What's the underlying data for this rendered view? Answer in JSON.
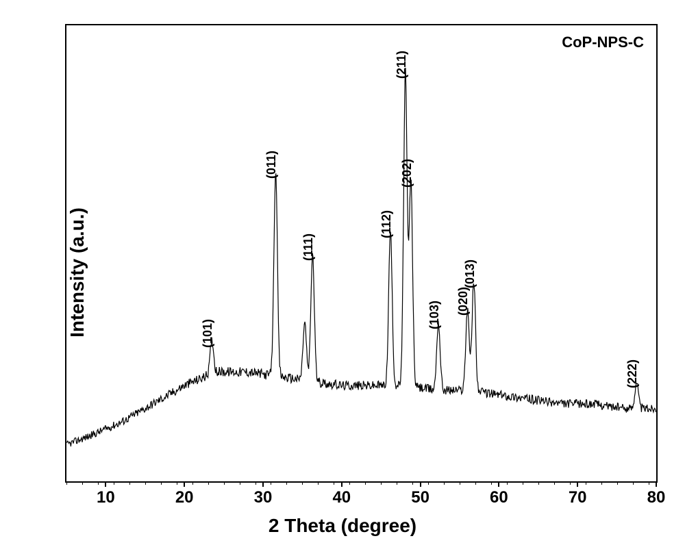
{
  "chart": {
    "type": "xrd-line",
    "title": "",
    "legend_label": "CoP-NPS-C",
    "xlabel": "2 Theta (degree)",
    "ylabel": "Intensity (a.u.)",
    "xlim": [
      5,
      80
    ],
    "ylim": [
      0,
      100
    ],
    "xtick_major": [
      10,
      20,
      30,
      40,
      50,
      60,
      70,
      80
    ],
    "xtick_minor_step": 2,
    "background_color": "#ffffff",
    "line_color": "#000000",
    "border_color": "#000000",
    "axis_font_size": 28,
    "tick_font_size": 24,
    "legend_font_size": 22,
    "peak_label_font_size": 18,
    "peaks": [
      {
        "two_theta": 23.5,
        "label": "(101)",
        "height": 31,
        "label_y_offset": 0
      },
      {
        "two_theta": 31.6,
        "label": "(011)",
        "height": 68,
        "label_y_offset": 0
      },
      {
        "two_theta": 36.3,
        "label": "(111)",
        "height": 50,
        "label_y_offset": 0
      },
      {
        "two_theta": 46.2,
        "label": "(112)",
        "height": 55,
        "label_y_offset": 0
      },
      {
        "two_theta": 48.1,
        "label": "(211)",
        "height": 90,
        "label_y_offset": 0
      },
      {
        "two_theta": 48.8,
        "label": "(202)",
        "height": 66,
        "label_y_offset": 0
      },
      {
        "two_theta": 52.3,
        "label": "(103)",
        "height": 35,
        "label_y_offset": 0
      },
      {
        "two_theta": 56.0,
        "label": "(020)",
        "height": 38,
        "label_y_offset": 0
      },
      {
        "two_theta": 56.8,
        "label": "(013)",
        "height": 44,
        "label_y_offset": 0
      },
      {
        "two_theta": 77.5,
        "label": "(222)",
        "height": 22,
        "label_y_offset": 0
      }
    ],
    "baseline_points": [
      {
        "x": 5,
        "y": 8
      },
      {
        "x": 8,
        "y": 10
      },
      {
        "x": 12,
        "y": 13
      },
      {
        "x": 16,
        "y": 17
      },
      {
        "x": 20,
        "y": 21
      },
      {
        "x": 24,
        "y": 24
      },
      {
        "x": 28,
        "y": 24
      },
      {
        "x": 32,
        "y": 23
      },
      {
        "x": 36,
        "y": 22
      },
      {
        "x": 40,
        "y": 21
      },
      {
        "x": 44,
        "y": 21
      },
      {
        "x": 48,
        "y": 21
      },
      {
        "x": 52,
        "y": 20
      },
      {
        "x": 56,
        "y": 20
      },
      {
        "x": 60,
        "y": 19
      },
      {
        "x": 64,
        "y": 18
      },
      {
        "x": 68,
        "y": 17
      },
      {
        "x": 72,
        "y": 17
      },
      {
        "x": 76,
        "y": 16
      },
      {
        "x": 80,
        "y": 16
      }
    ],
    "noise_amplitude": 2.2,
    "sample_step": 0.08
  }
}
